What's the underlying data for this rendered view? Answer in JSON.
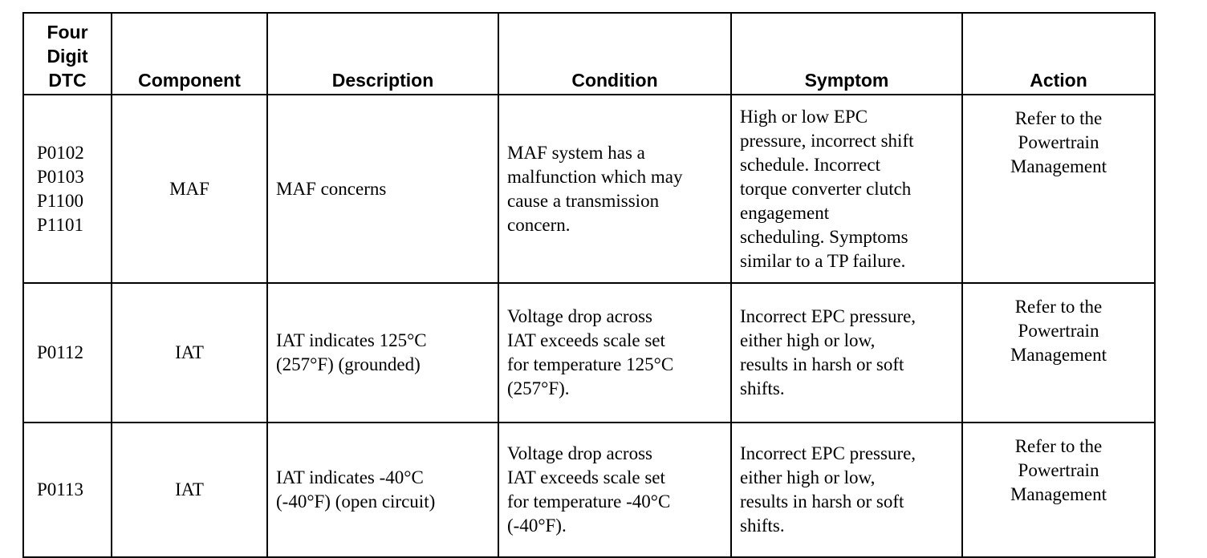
{
  "table": {
    "header": [
      [
        "Four",
        "Digit",
        "DTC"
      ],
      [
        "Component"
      ],
      [
        "Description"
      ],
      [
        "Condition"
      ],
      [
        "Symptom"
      ],
      [
        "Action"
      ]
    ],
    "rows": [
      [
        [
          "P0102",
          "P0103",
          "P1100",
          "P1101"
        ],
        [
          "MAF"
        ],
        [
          "MAF concerns"
        ],
        [
          "MAF system has a",
          "malfunction which may",
          "cause a transmission",
          "concern."
        ],
        [
          "High or low EPC",
          "pressure, incorrect shift",
          "schedule. Incorrect",
          "torque converter clutch",
          "engagement",
          "scheduling. Symptoms",
          "similar to a TP failure."
        ],
        [
          "Refer to the",
          "Powertrain",
          "Management"
        ]
      ],
      [
        [
          "P0112"
        ],
        [
          "IAT"
        ],
        [
          "IAT indicates 125°C",
          "(257°F) (grounded)"
        ],
        [
          "Voltage drop across",
          "IAT exceeds scale set",
          "for temperature 125°C",
          "(257°F)."
        ],
        [
          "Incorrect EPC pressure,",
          "either high or low,",
          "results in harsh or soft",
          "shifts."
        ],
        [
          "Refer to the",
          "Powertrain",
          "Management"
        ]
      ],
      [
        [
          "P0113"
        ],
        [
          "IAT"
        ],
        [
          "IAT indicates -40°C",
          "(-40°F) (open circuit)"
        ],
        [
          "Voltage drop across",
          "IAT exceeds scale set",
          "for temperature -40°C",
          "(-40°F)."
        ],
        [
          "Incorrect EPC pressure,",
          "either high or low,",
          "results in harsh or soft",
          "shifts."
        ],
        [
          "Refer to the",
          "Powertrain",
          "Management"
        ]
      ]
    ]
  }
}
